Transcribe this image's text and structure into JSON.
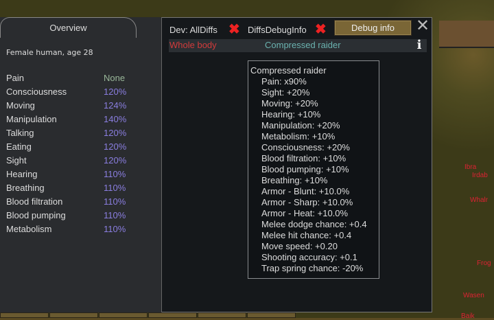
{
  "window": {
    "overview_tab": "Overview",
    "description": "Female human, age 28"
  },
  "capacities": [
    {
      "name": "Pain",
      "value": "None"
    },
    {
      "name": "Consciousness",
      "value": "120%"
    },
    {
      "name": "Moving",
      "value": "124%"
    },
    {
      "name": "Manipulation",
      "value": "140%"
    },
    {
      "name": "Talking",
      "value": "120%"
    },
    {
      "name": "Eating",
      "value": "120%"
    },
    {
      "name": "Sight",
      "value": "120%"
    },
    {
      "name": "Hearing",
      "value": "110%"
    },
    {
      "name": "Breathing",
      "value": "110%"
    },
    {
      "name": "Blood filtration",
      "value": "110%"
    },
    {
      "name": "Blood pumping",
      "value": "110%"
    },
    {
      "name": "Metabolism",
      "value": "110%"
    }
  ],
  "toolbar": {
    "dev_all_diffs": "Dev: AllDiffs",
    "diffs_debug_info": "DiffsDebugInfo",
    "debug_info": "Debug info"
  },
  "hediff": {
    "part": "Whole body",
    "name": "Compressed raider"
  },
  "tooltip": {
    "title": "Compressed raider",
    "lines": [
      "Pain: x90%",
      "Sight: +20%",
      "Moving: +20%",
      "Hearing: +10%",
      "Manipulation: +20%",
      "Metabolism: +10%",
      "Consciousness: +20%",
      "Blood filtration: +10%",
      "Blood pumping: +10%",
      "Breathing: +10%",
      "Armor - Blunt: +10.0%",
      "Armor - Sharp: +10.0%",
      "Armor - Heat: +10.0%",
      "Melee dodge chance: +0.4",
      "Melee hit chance: +0.4",
      "Move speed: +0.20",
      "Shooting accuracy: +0.1",
      "Trap spring chance: -20%"
    ]
  },
  "background_pawns": [
    "Ibra",
    "Irdab",
    "Whalr",
    "Frog",
    "Wasen",
    "Baik"
  ]
}
